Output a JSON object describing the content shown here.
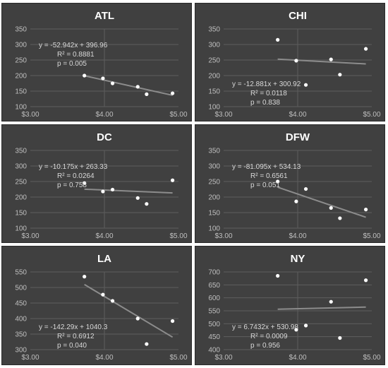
{
  "chart_data": [
    {
      "type": "scatter",
      "title": "ATL",
      "xlim": [
        3.0,
        5.0
      ],
      "ylim": [
        100,
        350
      ],
      "x_ticks": [
        3.0,
        4.0,
        5.0
      ],
      "x_tick_labels": [
        "$3.00",
        "$4.00",
        "$5.00"
      ],
      "y_ticks": [
        100,
        150,
        200,
        250,
        300,
        350
      ],
      "y_tick_labels": [
        "100",
        "150",
        "200",
        "250",
        "300",
        "350"
      ],
      "grid": "horizontal gridlines",
      "annotation_position": "top-left",
      "annotation": [
        "y = -52.942x + 396.96",
        "R² = 0.8881",
        "p = 0.005"
      ],
      "trendline": {
        "slope": -52.942,
        "intercept": 396.96
      },
      "points": [
        {
          "x": 3.73,
          "y": 200
        },
        {
          "x": 3.98,
          "y": 191
        },
        {
          "x": 4.11,
          "y": 175
        },
        {
          "x": 4.45,
          "y": 164
        },
        {
          "x": 4.57,
          "y": 140
        },
        {
          "x": 4.92,
          "y": 143
        }
      ]
    },
    {
      "type": "scatter",
      "title": "CHI",
      "xlim": [
        3.0,
        5.0
      ],
      "ylim": [
        100,
        350
      ],
      "x_ticks": [
        3.0,
        4.0,
        5.0
      ],
      "x_tick_labels": [
        "$3.00",
        "$4.00",
        "$5.00"
      ],
      "y_ticks": [
        100,
        150,
        200,
        250,
        300,
        350
      ],
      "y_tick_labels": [
        "100",
        "150",
        "200",
        "250",
        "300",
        "350"
      ],
      "grid": "horizontal gridlines",
      "annotation_position": "bottom-left",
      "annotation": [
        "y = -12.881x + 300.92",
        "R² = 0.0118",
        "p = 0.838"
      ],
      "trendline": {
        "slope": -12.881,
        "intercept": 300.92
      },
      "points": [
        {
          "x": 3.73,
          "y": 315
        },
        {
          "x": 3.98,
          "y": 248
        },
        {
          "x": 4.11,
          "y": 170
        },
        {
          "x": 4.45,
          "y": 252
        },
        {
          "x": 4.57,
          "y": 203
        },
        {
          "x": 4.92,
          "y": 286
        }
      ]
    },
    {
      "type": "scatter",
      "title": "DC",
      "xlim": [
        3.0,
        5.0
      ],
      "ylim": [
        100,
        350
      ],
      "x_ticks": [
        3.0,
        4.0,
        5.0
      ],
      "x_tick_labels": [
        "$3.00",
        "$4.00",
        "$5.00"
      ],
      "y_ticks": [
        100,
        150,
        200,
        250,
        300,
        350
      ],
      "y_tick_labels": [
        "100",
        "150",
        "200",
        "250",
        "300",
        "350"
      ],
      "grid": "horizontal gridlines",
      "annotation_position": "top-left",
      "annotation": [
        "y = -10.175x + 263.33",
        "R² = 0.0264",
        "p = 0.758"
      ],
      "trendline": {
        "slope": -10.175,
        "intercept": 263.33
      },
      "points": [
        {
          "x": 3.73,
          "y": 245
        },
        {
          "x": 3.98,
          "y": 218
        },
        {
          "x": 4.11,
          "y": 224
        },
        {
          "x": 4.45,
          "y": 197
        },
        {
          "x": 4.57,
          "y": 178
        },
        {
          "x": 4.92,
          "y": 254
        }
      ]
    },
    {
      "type": "scatter",
      "title": "DFW",
      "xlim": [
        3.0,
        5.0
      ],
      "ylim": [
        100,
        350
      ],
      "x_ticks": [
        3.0,
        4.0,
        5.0
      ],
      "x_tick_labels": [
        "$3.00",
        "$4.00",
        "$5.00"
      ],
      "y_ticks": [
        100,
        150,
        200,
        250,
        300,
        350
      ],
      "y_tick_labels": [
        "100",
        "150",
        "200",
        "250",
        "300",
        "350"
      ],
      "grid": "horizontal gridlines",
      "annotation_position": "top-left",
      "annotation": [
        "y = -81.095x + 534.13",
        "R² = 0.6561",
        "p = 0.051"
      ],
      "trendline": {
        "slope": -81.095,
        "intercept": 534.13
      },
      "points": [
        {
          "x": 3.73,
          "y": 250
        },
        {
          "x": 3.98,
          "y": 186
        },
        {
          "x": 4.11,
          "y": 226
        },
        {
          "x": 4.45,
          "y": 165
        },
        {
          "x": 4.57,
          "y": 132
        },
        {
          "x": 4.92,
          "y": 160
        }
      ]
    },
    {
      "type": "scatter",
      "title": "LA",
      "xlim": [
        3.0,
        5.0
      ],
      "ylim": [
        300,
        550
      ],
      "x_ticks": [
        3.0,
        4.0,
        5.0
      ],
      "x_tick_labels": [
        "$3.00",
        "$4.00",
        "$5.00"
      ],
      "y_ticks": [
        300,
        350,
        400,
        450,
        500,
        550
      ],
      "y_tick_labels": [
        "300",
        "350",
        "400",
        "450",
        "500",
        "550"
      ],
      "grid": "horizontal gridlines",
      "annotation_position": "bottom-left",
      "annotation": [
        "y = -142.29x + 1040.3",
        "R² = 0.6912",
        "p = 0.040"
      ],
      "trendline": {
        "slope": -142.29,
        "intercept": 1040.3
      },
      "points": [
        {
          "x": 3.73,
          "y": 535
        },
        {
          "x": 3.98,
          "y": 477
        },
        {
          "x": 4.11,
          "y": 457
        },
        {
          "x": 4.45,
          "y": 400
        },
        {
          "x": 4.57,
          "y": 318
        },
        {
          "x": 4.92,
          "y": 392
        }
      ]
    },
    {
      "type": "scatter",
      "title": "NY",
      "xlim": [
        3.0,
        5.0
      ],
      "ylim": [
        400,
        700
      ],
      "x_ticks": [
        3.0,
        4.0,
        5.0
      ],
      "x_tick_labels": [
        "$3.00",
        "$4.00",
        "$5.00"
      ],
      "y_ticks": [
        400,
        450,
        500,
        550,
        600,
        650,
        700
      ],
      "y_tick_labels": [
        "400",
        "450",
        "500",
        "550",
        "600",
        "650",
        "700"
      ],
      "grid": "horizontal gridlines",
      "annotation_position": "bottom-left",
      "annotation": [
        "y = 6.7432x + 530.98",
        "R² = 0.0009",
        "p = 0.956"
      ],
      "trendline": {
        "slope": 6.7432,
        "intercept": 530.98
      },
      "points": [
        {
          "x": 3.73,
          "y": 685
        },
        {
          "x": 3.98,
          "y": 477
        },
        {
          "x": 4.11,
          "y": 493
        },
        {
          "x": 4.45,
          "y": 585
        },
        {
          "x": 4.57,
          "y": 445
        },
        {
          "x": 4.92,
          "y": 668
        }
      ]
    }
  ],
  "colors": {
    "panel_background": "#404040",
    "gridline": "#5e5e5e",
    "trendline": "#8c8c8c",
    "points": "#ffffff",
    "title": "#ffffff",
    "tick_labels": "#bfbfbf"
  }
}
